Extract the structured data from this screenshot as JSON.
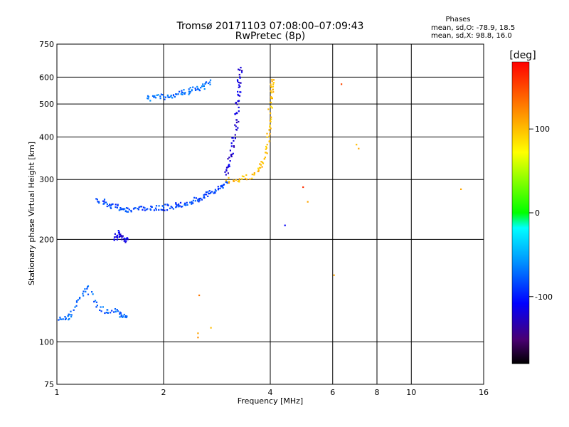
{
  "chart_data": {
    "type": "scatter",
    "title": "Tromsø 20171103 07:08:00–07:09:43",
    "subtitle": "RwPretec (8p)",
    "xlabel": "Frequency [MHz]",
    "ylabel": "Stationary phase Virtual Height [km]",
    "x_scale": "log",
    "y_scale": "log",
    "xlim": [
      1,
      16
    ],
    "ylim": [
      75,
      750
    ],
    "x_ticks": [
      1,
      2,
      4,
      6,
      8,
      10,
      16
    ],
    "x_tick_labels": [
      "1",
      "2",
      "4",
      "6",
      "8",
      "10",
      "16"
    ],
    "y_ticks": [
      75,
      100,
      200,
      300,
      400,
      500,
      600,
      750
    ],
    "y_tick_labels": [
      "75",
      "100",
      "200",
      "300",
      "400",
      "500",
      "600",
      "750"
    ],
    "grid": true,
    "stats": {
      "heading": "Phases",
      "line_o": "mean, sd,O: -78.9, 18.5",
      "line_x": "mean, sd,X:  98.8, 16.0"
    },
    "colorbar": {
      "label": "[deg]",
      "range": [
        -180,
        180
      ],
      "ticks": [
        100,
        0,
        -100
      ],
      "tick_labels": [
        "100",
        "0",
        "-100"
      ]
    },
    "series": [
      {
        "name": "O-mode",
        "segments": [
          {
            "x": [
              1.02,
              1.06,
              1.1,
              1.16,
              1.22,
              1.3,
              1.38,
              1.46,
              1.52,
              1.57
            ],
            "y": [
              118,
              117,
              120,
              135,
              145,
              128,
              122,
              125,
              120,
              118
            ],
            "phase": -75
          },
          {
            "x": [
              1.3,
              1.36,
              1.42,
              1.48,
              1.54,
              1.6,
              1.7,
              1.8,
              1.9,
              2.0,
              2.1,
              2.2,
              2.3,
              2.4,
              2.5,
              2.6,
              2.7,
              2.8,
              2.9,
              3.0
            ],
            "y": [
              262,
              256,
              252,
              248,
              246,
              245,
              245,
              246,
              247,
              248,
              250,
              252,
              255,
              258,
              262,
              267,
              273,
              280,
              287,
              295
            ],
            "phase": -85
          },
          {
            "x": [
              3.0,
              3.05,
              3.1,
              3.15,
              3.2,
              3.22,
              3.24,
              3.26,
              3.28,
              3.3
            ],
            "y": [
              310,
              330,
              355,
              390,
              430,
              470,
              510,
              560,
              600,
              640
            ],
            "phase": -120
          },
          {
            "x": [
              1.8,
              1.9,
              2.0,
              2.1,
              2.2,
              2.3,
              2.4,
              2.5,
              2.6,
              2.7
            ],
            "y": [
              520,
              522,
              525,
              530,
              535,
              540,
              548,
              555,
              565,
              580
            ],
            "phase": -70
          },
          {
            "x": [
              1.45,
              1.48,
              1.5,
              1.55,
              1.58
            ],
            "y": [
              200,
              205,
              210,
              198,
              202
            ],
            "phase": -115
          }
        ]
      },
      {
        "name": "X-mode",
        "segments": [
          {
            "x": [
              3.0,
              3.2,
              3.4,
              3.6,
              3.75,
              3.85,
              3.92,
              3.97,
              4.0,
              4.02,
              4.03,
              4.04
            ],
            "y": [
              298,
              299,
              302,
              310,
              325,
              345,
              380,
              420,
              470,
              520,
              560,
              590
            ],
            "phase": 100
          }
        ]
      }
    ],
    "extra_points": {
      "x": [
        2.5,
        2.5,
        2.52,
        2.72,
        4.4,
        4.95,
        5.1,
        6.05,
        6.35,
        7.0,
        7.1,
        13.8
      ],
      "y": [
        103,
        106,
        137,
        110,
        220,
        285,
        258,
        157,
        572,
        380,
        370,
        281
      ],
      "phase": [
        120,
        110,
        130,
        100,
        -110,
        160,
        110,
        110,
        150,
        100,
        110,
        110
      ]
    }
  }
}
